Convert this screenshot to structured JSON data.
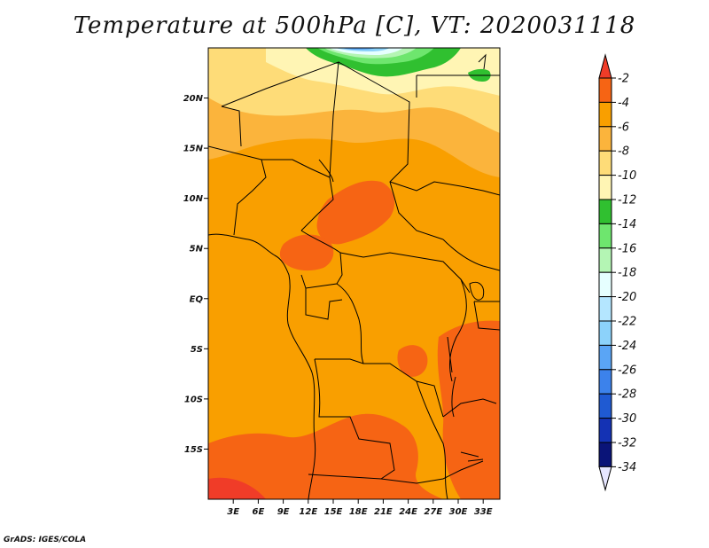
{
  "title": "Temperature at 500hPa [C], VT: 2020031118",
  "credit": "GrADS: IGES/COLA",
  "map": {
    "lon_range": [
      0,
      35
    ],
    "lat_range": [
      -20,
      25
    ],
    "lat_ticks": [
      {
        "lat": 20,
        "label": "20N"
      },
      {
        "lat": 15,
        "label": "15N"
      },
      {
        "lat": 10,
        "label": "10N"
      },
      {
        "lat": 5,
        "label": "5N"
      },
      {
        "lat": 0,
        "label": "EQ"
      },
      {
        "lat": -5,
        "label": "5S"
      },
      {
        "lat": -10,
        "label": "10S"
      },
      {
        "lat": -15,
        "label": "15S"
      }
    ],
    "lon_ticks": [
      {
        "lon": 3,
        "label": "3E"
      },
      {
        "lon": 6,
        "label": "6E"
      },
      {
        "lon": 9,
        "label": "9E"
      },
      {
        "lon": 12,
        "label": "12E"
      },
      {
        "lon": 15,
        "label": "15E"
      },
      {
        "lon": 18,
        "label": "18E"
      },
      {
        "lon": 21,
        "label": "21E"
      },
      {
        "lon": 24,
        "label": "24E"
      },
      {
        "lon": 27,
        "label": "27E"
      },
      {
        "lon": 30,
        "label": "30E"
      },
      {
        "lon": 33,
        "label": "33E"
      }
    ]
  },
  "colorbar": {
    "labels": [
      "-2",
      "-4",
      "-6",
      "-8",
      "-10",
      "-12",
      "-14",
      "-16",
      "-18",
      "-20",
      "-22",
      "-24",
      "-26",
      "-28",
      "-30",
      "-32",
      "-34"
    ],
    "colors": [
      "#f03c28",
      "#f66414",
      "#f99f00",
      "#fbb43c",
      "#fedc78",
      "#fff5b4",
      "#30c030",
      "#6ee66e",
      "#b4f5b4",
      "#e6ffff",
      "#b4e6ff",
      "#8cd2fa",
      "#5aa5f5",
      "#3c82eb",
      "#1f5ad2",
      "#1432b4",
      "#0a1478",
      "#e6e6ff"
    ]
  }
}
